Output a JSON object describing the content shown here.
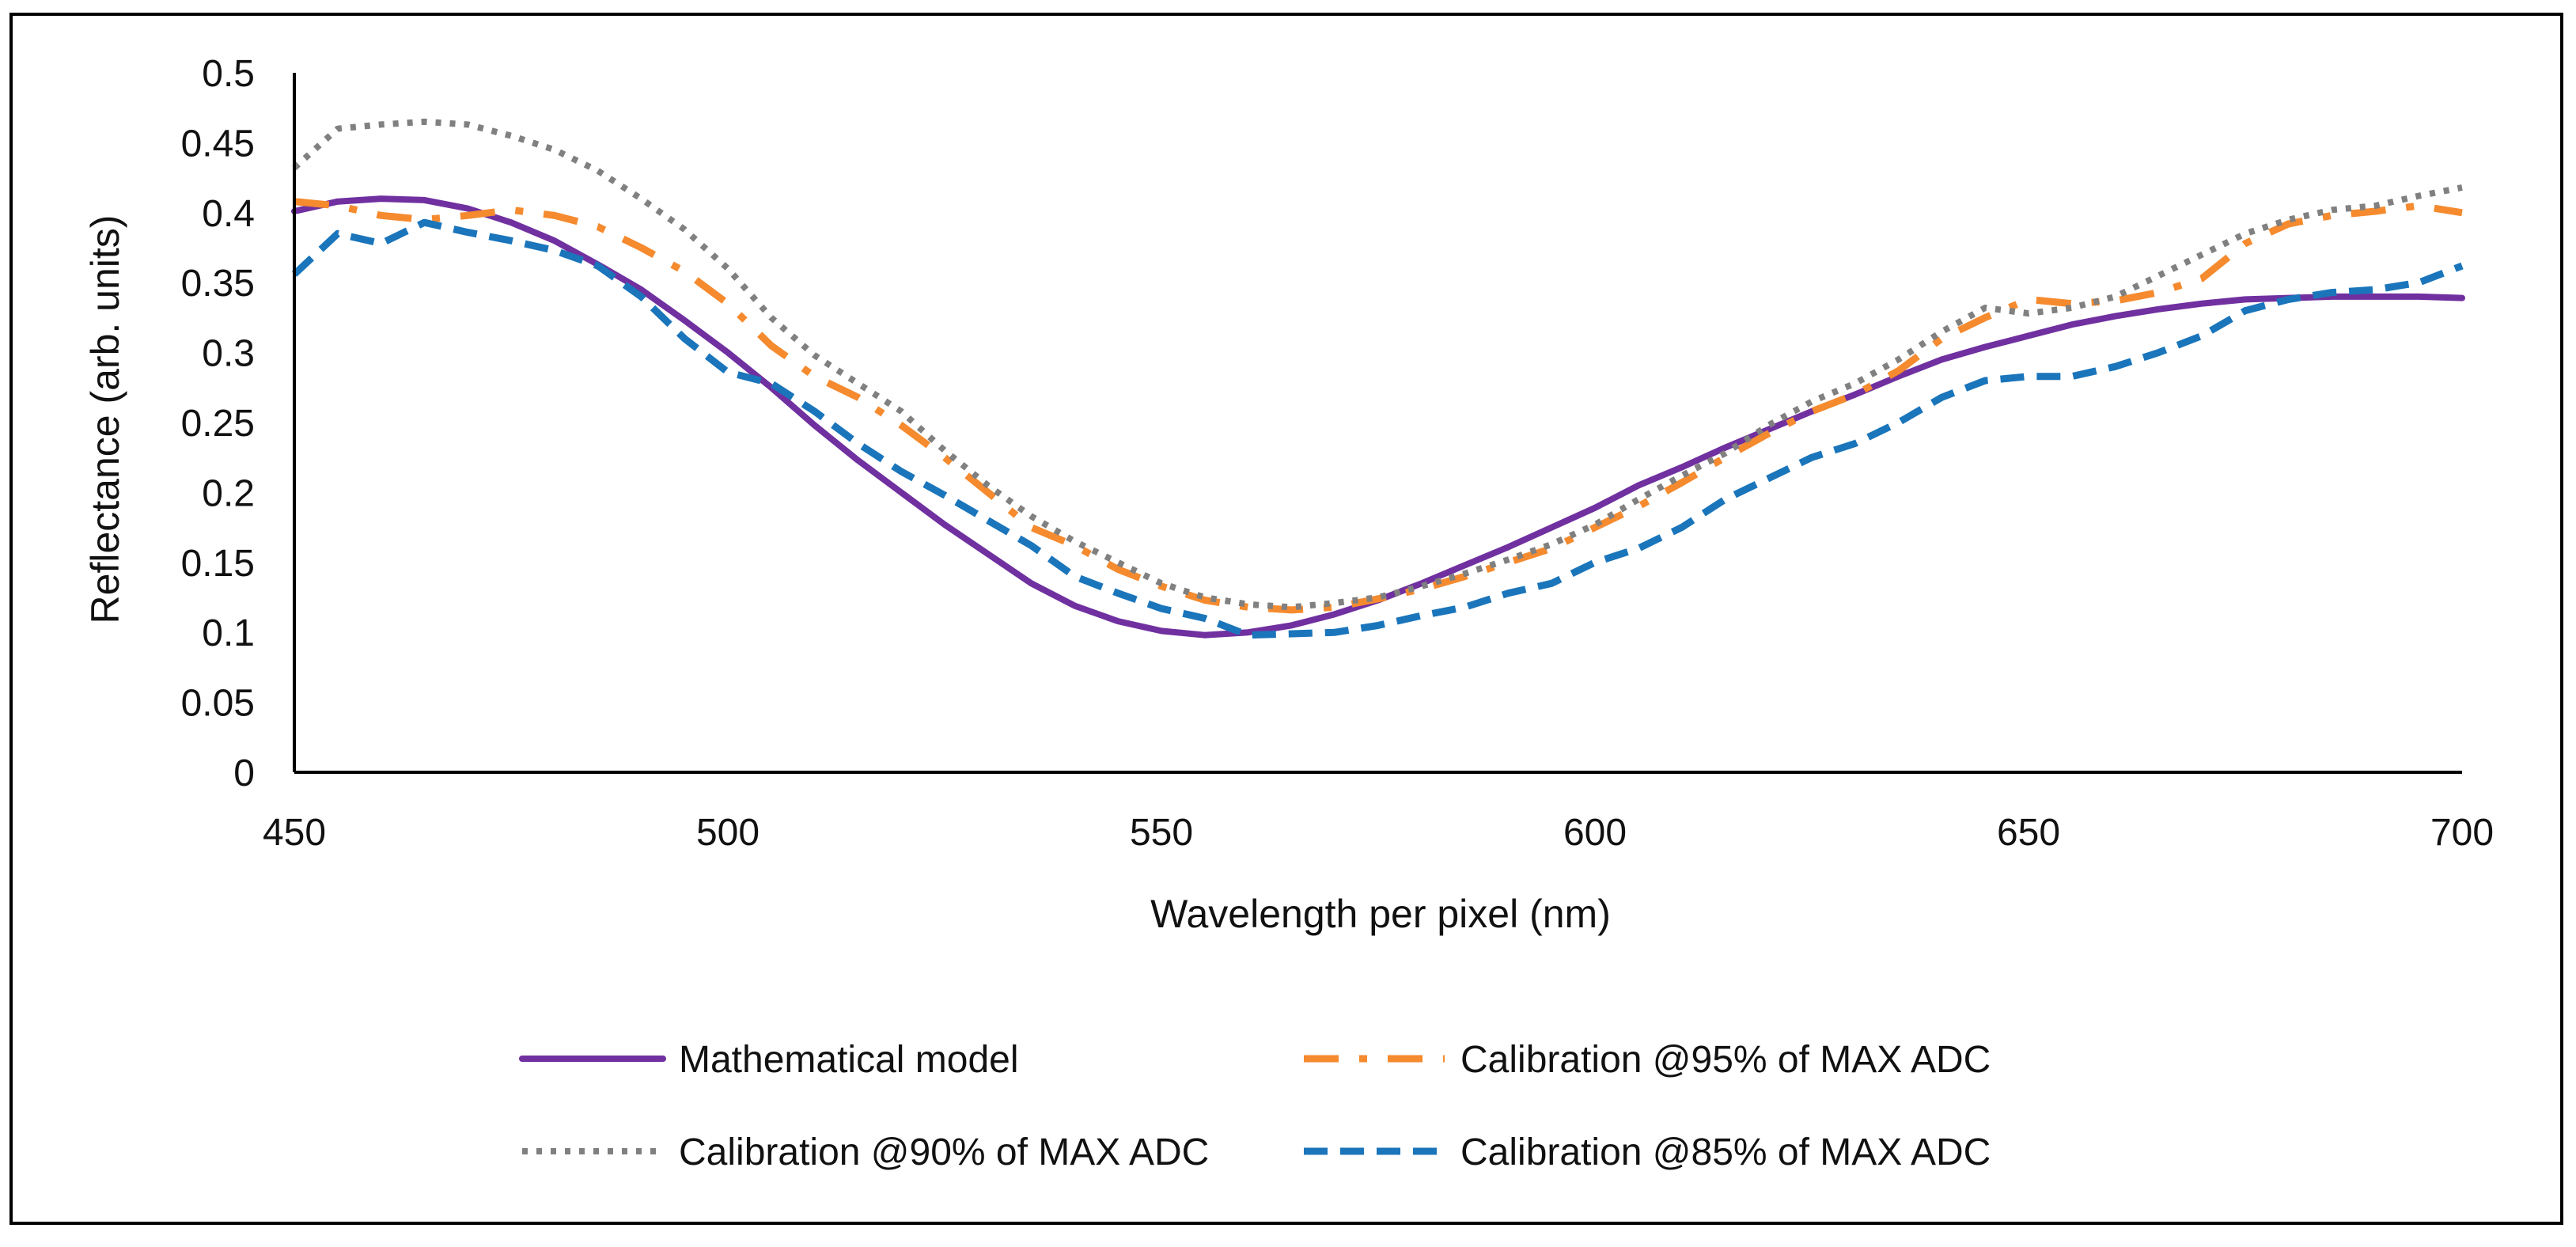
{
  "chart_data": {
    "type": "line",
    "title": "",
    "xlabel": "Wavelength per pixel (nm)",
    "ylabel": "Reflectance (arb. units)",
    "xlim": [
      450,
      700
    ],
    "ylim": [
      0,
      0.5
    ],
    "xticks": [
      450,
      500,
      550,
      600,
      650,
      700
    ],
    "xtick_labels": [
      "450",
      "500",
      "550",
      "600",
      "650",
      "700"
    ],
    "yticks": [
      0,
      0.05,
      0.1,
      0.15,
      0.2,
      0.25,
      0.3,
      0.35,
      0.4,
      0.45,
      0.5
    ],
    "ytick_labels": [
      "0",
      "0.05",
      "0.1",
      "0.15",
      "0.2",
      "0.25",
      "0.3",
      "0.35",
      "0.4",
      "0.45",
      "0.5"
    ],
    "grid": false,
    "legend_position": "bottom",
    "series": [
      {
        "name": "Mathematical model",
        "color": "#7030A0",
        "dash": "solid",
        "x": [
          450,
          455,
          460,
          465,
          470,
          475,
          480,
          485,
          490,
          495,
          500,
          505,
          510,
          515,
          520,
          525,
          530,
          535,
          540,
          545,
          550,
          555,
          560,
          565,
          570,
          575,
          580,
          585,
          590,
          595,
          600,
          605,
          610,
          615,
          620,
          625,
          630,
          635,
          640,
          645,
          650,
          655,
          660,
          665,
          670,
          675,
          680,
          685,
          690,
          695,
          700
        ],
        "y": [
          0.401,
          0.408,
          0.41,
          0.409,
          0.403,
          0.393,
          0.38,
          0.363,
          0.345,
          0.323,
          0.3,
          0.275,
          0.248,
          0.223,
          0.2,
          0.177,
          0.156,
          0.135,
          0.119,
          0.108,
          0.101,
          0.098,
          0.1,
          0.105,
          0.113,
          0.123,
          0.135,
          0.148,
          0.161,
          0.175,
          0.189,
          0.205,
          0.218,
          0.232,
          0.245,
          0.258,
          0.27,
          0.283,
          0.295,
          0.304,
          0.312,
          0.32,
          0.326,
          0.331,
          0.335,
          0.338,
          0.339,
          0.34,
          0.34,
          0.34,
          0.339
        ]
      },
      {
        "name": "Calibration @95% of MAX ADC",
        "color": "#F58A2E",
        "dash": "dashdot",
        "x": [
          450,
          455,
          460,
          465,
          470,
          475,
          480,
          485,
          490,
          495,
          500,
          505,
          510,
          515,
          520,
          525,
          530,
          535,
          540,
          545,
          550,
          555,
          560,
          565,
          570,
          575,
          580,
          585,
          590,
          595,
          600,
          605,
          610,
          615,
          620,
          625,
          630,
          635,
          640,
          645,
          650,
          655,
          660,
          665,
          670,
          675,
          680,
          685,
          690,
          695,
          700
        ],
        "y": [
          0.408,
          0.405,
          0.398,
          0.395,
          0.398,
          0.402,
          0.398,
          0.39,
          0.375,
          0.358,
          0.335,
          0.305,
          0.283,
          0.268,
          0.248,
          0.225,
          0.2,
          0.175,
          0.162,
          0.145,
          0.133,
          0.123,
          0.118,
          0.116,
          0.118,
          0.124,
          0.131,
          0.14,
          0.15,
          0.16,
          0.175,
          0.19,
          0.207,
          0.225,
          0.242,
          0.258,
          0.27,
          0.287,
          0.31,
          0.325,
          0.338,
          0.335,
          0.337,
          0.343,
          0.353,
          0.378,
          0.392,
          0.398,
          0.401,
          0.405,
          0.4
        ]
      },
      {
        "name": "Calibration @90% of MAX ADC",
        "color": "#808080",
        "dash": "dotted",
        "x": [
          450,
          455,
          460,
          465,
          470,
          475,
          480,
          485,
          490,
          495,
          500,
          505,
          510,
          515,
          520,
          525,
          530,
          535,
          540,
          545,
          550,
          555,
          560,
          565,
          570,
          575,
          580,
          585,
          590,
          595,
          600,
          605,
          610,
          615,
          620,
          625,
          630,
          635,
          640,
          645,
          650,
          655,
          660,
          665,
          670,
          675,
          680,
          685,
          690,
          695,
          700
        ],
        "y": [
          0.432,
          0.46,
          0.463,
          0.465,
          0.463,
          0.455,
          0.445,
          0.43,
          0.41,
          0.388,
          0.36,
          0.325,
          0.298,
          0.278,
          0.258,
          0.23,
          0.205,
          0.183,
          0.165,
          0.15,
          0.135,
          0.125,
          0.12,
          0.118,
          0.121,
          0.125,
          0.133,
          0.142,
          0.152,
          0.163,
          0.177,
          0.195,
          0.212,
          0.228,
          0.248,
          0.265,
          0.278,
          0.295,
          0.315,
          0.332,
          0.328,
          0.332,
          0.34,
          0.355,
          0.37,
          0.385,
          0.395,
          0.402,
          0.405,
          0.412,
          0.418
        ]
      },
      {
        "name": "Calibration @85% of MAX ADC",
        "color": "#1A75BB",
        "dash": "dashed",
        "x": [
          450,
          455,
          460,
          465,
          470,
          475,
          480,
          485,
          490,
          495,
          500,
          505,
          510,
          515,
          520,
          525,
          530,
          535,
          540,
          545,
          550,
          555,
          560,
          565,
          570,
          575,
          580,
          585,
          590,
          595,
          600,
          605,
          610,
          615,
          620,
          625,
          630,
          635,
          640,
          645,
          650,
          655,
          660,
          665,
          670,
          675,
          680,
          685,
          690,
          695,
          700
        ],
        "y": [
          0.356,
          0.385,
          0.378,
          0.393,
          0.386,
          0.38,
          0.373,
          0.362,
          0.34,
          0.31,
          0.286,
          0.278,
          0.258,
          0.235,
          0.215,
          0.198,
          0.18,
          0.162,
          0.14,
          0.128,
          0.117,
          0.11,
          0.098,
          0.099,
          0.1,
          0.105,
          0.112,
          0.118,
          0.128,
          0.135,
          0.15,
          0.16,
          0.175,
          0.195,
          0.21,
          0.225,
          0.235,
          0.25,
          0.268,
          0.28,
          0.283,
          0.283,
          0.29,
          0.3,
          0.312,
          0.33,
          0.338,
          0.343,
          0.345,
          0.35,
          0.362
        ]
      }
    ]
  }
}
